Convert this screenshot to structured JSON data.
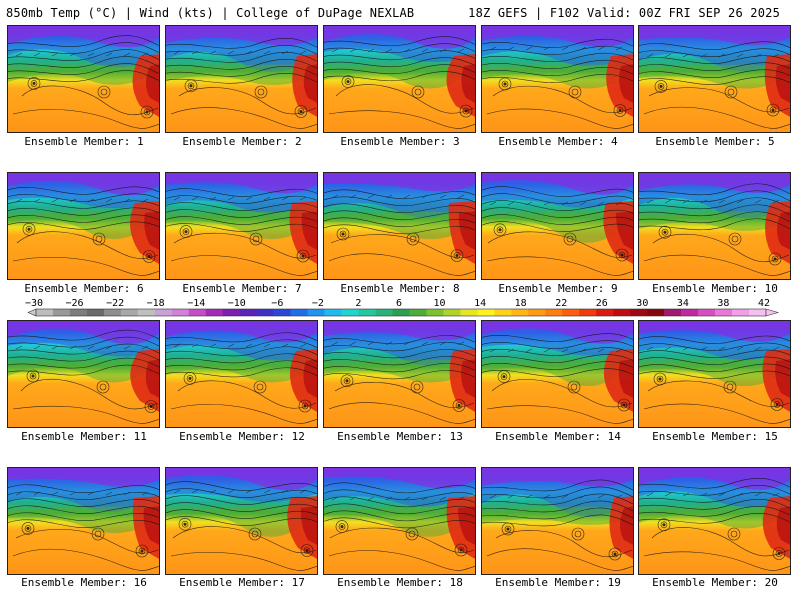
{
  "header": {
    "title": "850mb Temp (°C) | Wind (kts) | College of DuPage NEXLAB",
    "run": "18Z GEFS | F102 Valid: 00Z FRI SEP 26 2025"
  },
  "members": [
    "Ensemble Member: 1",
    "Ensemble Member: 2",
    "Ensemble Member: 3",
    "Ensemble Member: 4",
    "Ensemble Member: 5",
    "Ensemble Member: 6",
    "Ensemble Member: 7",
    "Ensemble Member: 8",
    "Ensemble Member: 9",
    "Ensemble Member: 10",
    "Ensemble Member: 11",
    "Ensemble Member: 12",
    "Ensemble Member: 13",
    "Ensemble Member: 14",
    "Ensemble Member: 15",
    "Ensemble Member: 16",
    "Ensemble Member: 17",
    "Ensemble Member: 18",
    "Ensemble Member: 19",
    "Ensemble Member: 20"
  ],
  "colorbar": {
    "labels": [
      "−30",
      "−26",
      "−22",
      "−18",
      "−14",
      "−10",
      "−6",
      "−2",
      "2",
      "6",
      "10",
      "14",
      "18",
      "22",
      "26",
      "30",
      "34",
      "38",
      "42"
    ],
    "colors": [
      "#bdbdbd",
      "#999999",
      "#7d7d7d",
      "#6a6a6a",
      "#8e8e8e",
      "#a8a8a8",
      "#bfbfbf",
      "#c9a0d8",
      "#d47fd8",
      "#c54ec8",
      "#a22bb8",
      "#7e1fb0",
      "#5b23b8",
      "#4030c8",
      "#2a48d8",
      "#1f6ee8",
      "#1e94f0",
      "#1fbaf0",
      "#20d6d0",
      "#22c8a0",
      "#26b47a",
      "#2aa050",
      "#4cae38",
      "#7cc230",
      "#aed42a",
      "#e6e626",
      "#fff21e",
      "#ffd21a",
      "#ffb616",
      "#ff9a14",
      "#ff7e12",
      "#ff5e10",
      "#f23a10",
      "#d81c10",
      "#c00c10",
      "#a00810",
      "#86060e",
      "#a01870",
      "#c02aa0",
      "#d84ec0",
      "#e878d8",
      "#f0a0e8",
      "#f4c0ee"
    ]
  },
  "palette": {
    "purple": "#8a2be2",
    "blue": "#2f5fe6",
    "cyan": "#22c8d8",
    "teal": "#20b090",
    "green": "#4cae38",
    "yellow": "#f2e020",
    "orange": "#ffa81a",
    "orange2": "#ff9418",
    "red": "#e02a14",
    "darkred": "#b00c10"
  }
}
